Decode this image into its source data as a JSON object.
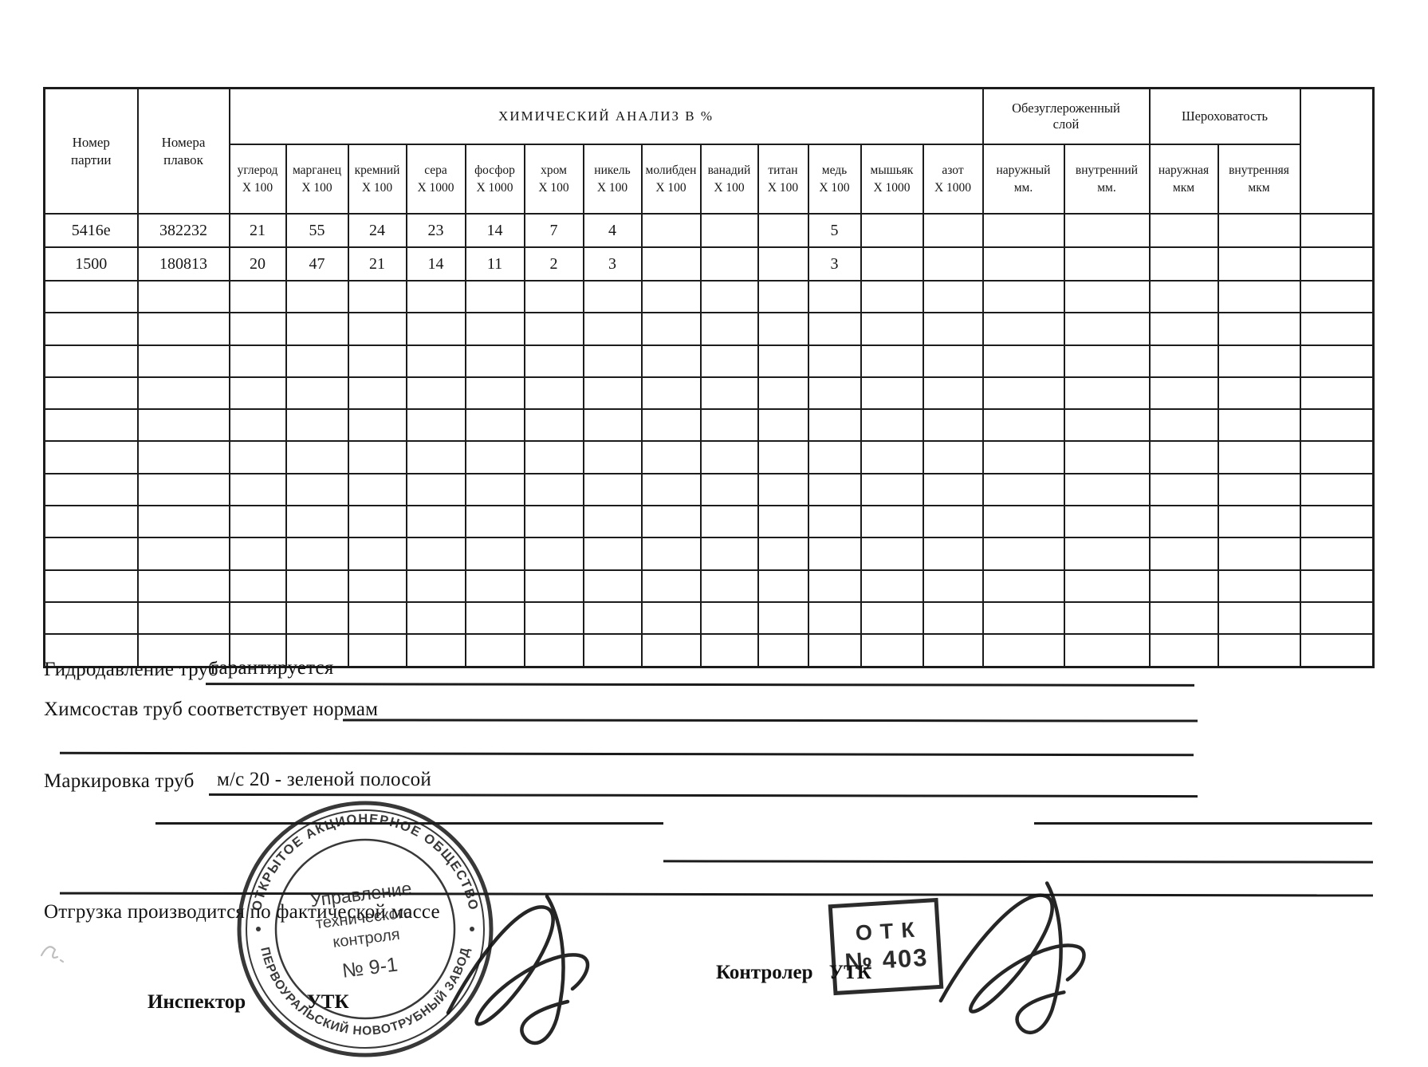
{
  "table": {
    "headers": {
      "batch": "Номер\nпартии",
      "heats": "Номера\nплавок",
      "chem_group": "ХИМИЧЕСКИЙ АНАЛИЗ В  %",
      "decarb_group": "Обезуглероженный\nслой",
      "rough_group": "Шероховатость",
      "chem_cols": [
        {
          "name": "углерод",
          "scale": "X 100"
        },
        {
          "name": "марганец",
          "scale": "X 100"
        },
        {
          "name": "кремний",
          "scale": "X 100"
        },
        {
          "name": "сера",
          "scale": "X 1000"
        },
        {
          "name": "фосфор",
          "scale": "X 1000"
        },
        {
          "name": "хром",
          "scale": "X 100"
        },
        {
          "name": "никель",
          "scale": "X 100"
        },
        {
          "name": "молибден",
          "scale": "X 100"
        },
        {
          "name": "ванадий",
          "scale": "X 100"
        },
        {
          "name": "титан",
          "scale": "X 100"
        },
        {
          "name": "медь",
          "scale": "X 100"
        },
        {
          "name": "мышьяк",
          "scale": "X 1000"
        },
        {
          "name": "азот",
          "scale": "X 1000"
        }
      ],
      "decarb_cols": [
        {
          "name": "наружный",
          "unit": "мм."
        },
        {
          "name": "внутренний",
          "unit": "мм."
        }
      ],
      "rough_cols": [
        {
          "name": "наружная",
          "unit": "мкм"
        },
        {
          "name": "внутренняя",
          "unit": "мкм"
        }
      ]
    },
    "rows": [
      {
        "cells": [
          "5416е",
          "382232",
          "21",
          "55",
          "24",
          "23",
          "14",
          "7",
          "4",
          "",
          "",
          "",
          "5",
          "",
          "",
          "",
          "",
          "",
          "",
          ""
        ]
      },
      {
        "cells": [
          "1500",
          "180813",
          "20",
          "47",
          "21",
          "14",
          "11",
          "2",
          "3",
          "",
          "",
          "",
          "3",
          "",
          "",
          "",
          "",
          "",
          "",
          ""
        ]
      }
    ],
    "empty_row_count": 12
  },
  "fields": [
    {
      "label": "Гидродавление труб",
      "value": "гарантируется"
    },
    {
      "label": "Химсостав труб соответствует нормам",
      "value": ""
    },
    {
      "label": "Маркировка труб",
      "value": "м/с 20 - зеленой полосой"
    }
  ],
  "footer": {
    "shipping_note": "Отгрузка производится по фактической массе",
    "inspector_label": "Инспектор УТК",
    "controller_label": "Контролер УТК"
  },
  "stamps": {
    "round": {
      "arc_top": "ОТКРЫТОЕ АКЦИОНЕРНОЕ ОБЩЕСТВО",
      "arc_bottom": "ПЕРВОУРАЛЬСКИЙ НОВОТРУБНЫЙ ЗАВОД",
      "center_lines": [
        "Управление",
        "технического",
        "контроля",
        "№ 9-1"
      ]
    },
    "rect": {
      "line1": "ОТК",
      "line2": "№ 403"
    }
  },
  "colors": {
    "ink": "#1b1b1b",
    "paper": "#ffffff"
  }
}
